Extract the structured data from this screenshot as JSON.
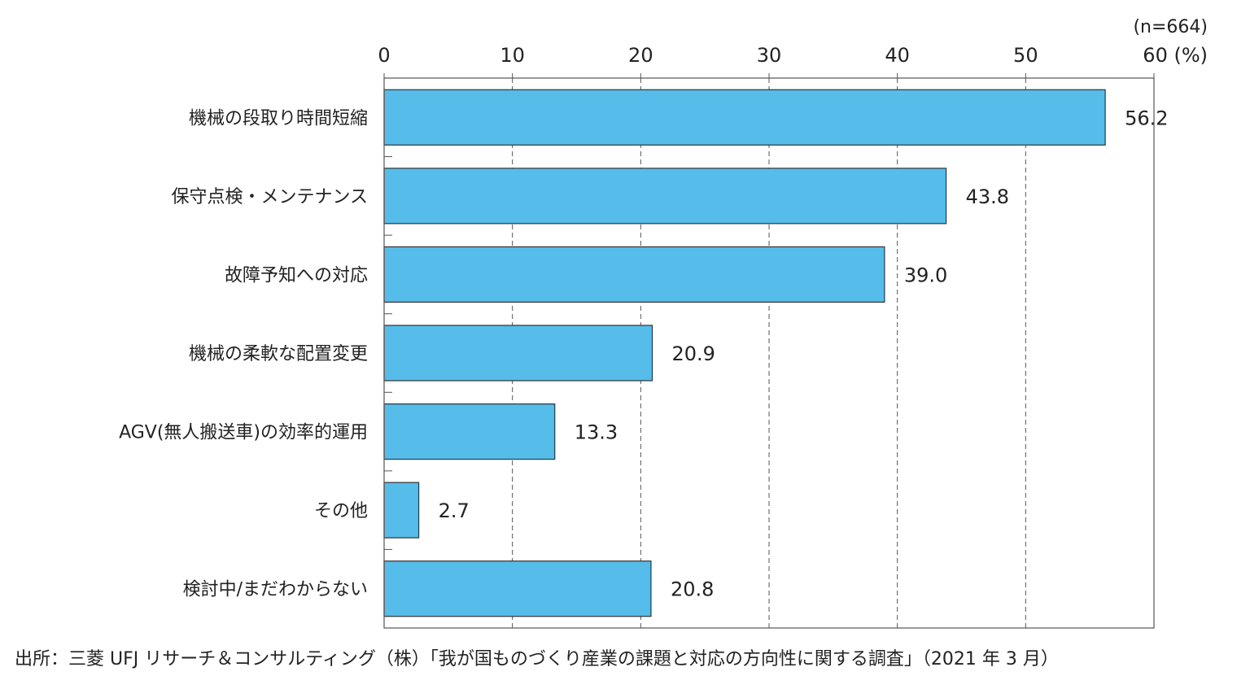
{
  "chart_data": {
    "type": "bar",
    "orientation": "horizontal",
    "categories": [
      "機械の段取り時間短縮",
      "保守点検・メンテナンス",
      "故障予知への対応",
      "機械の柔軟な配置変更",
      "AGV(無人搬送車)の効率的運用",
      "その他",
      "検討中/まだわからない"
    ],
    "values": [
      56.2,
      43.8,
      39.0,
      20.9,
      13.3,
      2.7,
      20.8
    ],
    "value_labels": [
      "56.2",
      "43.8",
      "39.0",
      "20.9",
      "13.3",
      "2.7",
      "20.8"
    ],
    "x_ticks": [
      "0",
      "10",
      "20",
      "30",
      "40",
      "50",
      "60 (%)"
    ],
    "xlim": [
      0,
      60
    ],
    "sample_note": "(n=664)",
    "grid": "dashed vertical",
    "bar_color": "#56bcea",
    "source": "出所：三菱 UFJ リサーチ＆コンサルティング（株）「我が国ものづくり産業の課題と対応の方向性に関する調査」（2021 年 3 月）"
  }
}
